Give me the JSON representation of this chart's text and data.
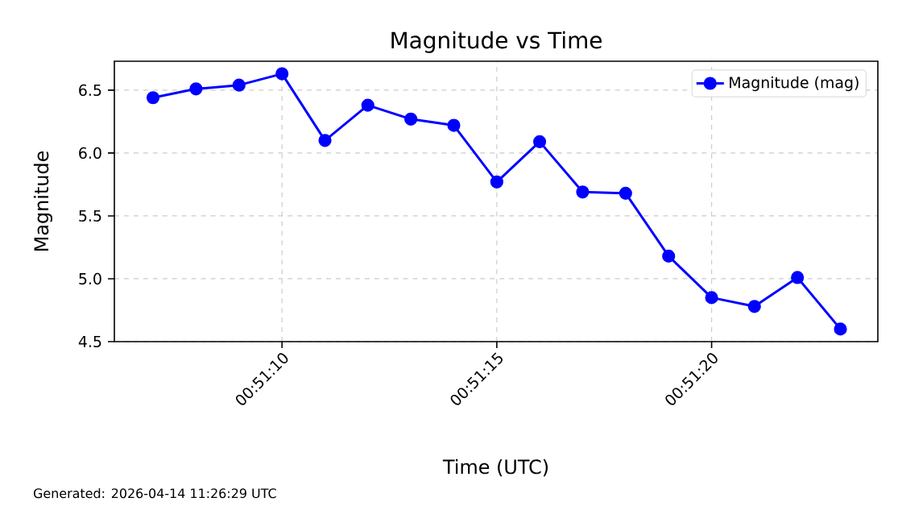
{
  "chart_data": {
    "type": "line",
    "title": "Magnitude vs Time",
    "xlabel": "Time (UTC)",
    "ylabel": "Magnitude",
    "x": [
      0.851944,
      0.852222,
      0.8525,
      0.852778,
      0.853056,
      0.853333,
      0.853611,
      0.853889,
      0.854167,
      0.854444,
      0.854722,
      0.855,
      0.855278,
      0.855556,
      0.855833,
      0.856111,
      0.856389
    ],
    "series": [
      {
        "name": "Magnitude (mag)",
        "color": "#0000ff",
        "values": [
          6.44,
          6.51,
          6.54,
          6.63,
          6.1,
          6.38,
          6.27,
          6.22,
          5.77,
          6.09,
          5.69,
          5.68,
          5.18,
          4.85,
          4.78,
          5.01,
          4.6
        ]
      }
    ],
    "xlim": [
      0.851694,
      0.856631
    ],
    "xticks": [
      {
        "value": 0.852778,
        "label": "00:51:10"
      },
      {
        "value": 0.854167,
        "label": "00:51:15"
      },
      {
        "value": 0.855556,
        "label": "00:51:20"
      }
    ],
    "ylim": [
      4.5,
      6.73
    ],
    "yticks": [
      4.5,
      {
        "value": 5,
        "label": "5.0"
      },
      5.5,
      {
        "value": 6,
        "label": "6.0"
      },
      6.5
    ],
    "grid": true,
    "legend": "top right",
    "marker": "circle",
    "line_style": "solid",
    "annotations": [
      "Generated: 2026-04-14 11:26:29 UTC"
    ]
  }
}
